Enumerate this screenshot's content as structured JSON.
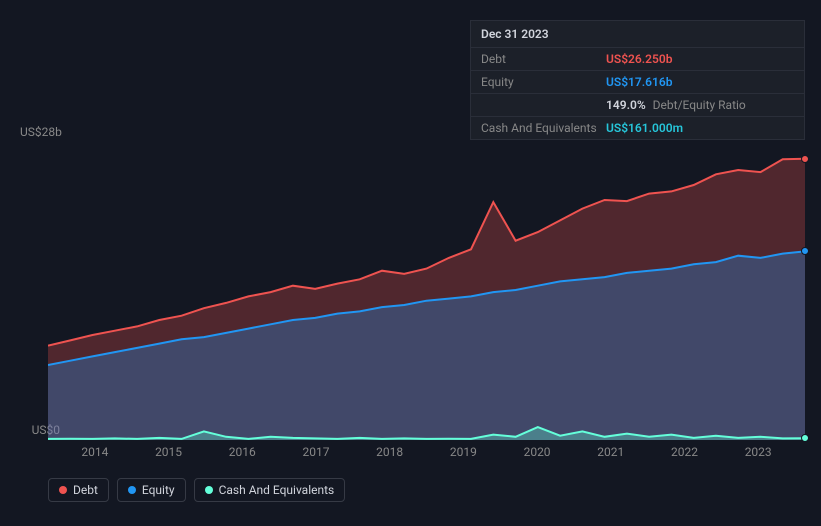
{
  "tooltip": {
    "date": "Dec 31 2023",
    "rows": [
      {
        "label": "Debt",
        "value": "US$26.250b",
        "cls": "val-debt"
      },
      {
        "label": "Equity",
        "value": "US$17.616b",
        "cls": "val-equity"
      },
      {
        "label": "",
        "ratio": "149.0%",
        "ratio_label": "Debt/Equity Ratio"
      },
      {
        "label": "Cash And Equivalents",
        "value": "US$161.000m",
        "cls": "val-cash"
      }
    ]
  },
  "chart": {
    "type": "area",
    "ymax": 28,
    "ymin": 0,
    "y_top_label": "US$28b",
    "y_bot_label": "US$0",
    "x_labels": [
      "2014",
      "2015",
      "2016",
      "2017",
      "2018",
      "2019",
      "2020",
      "2021",
      "2022",
      "2023"
    ],
    "background": "#131722",
    "grid_color": "#2a2e39",
    "series": {
      "debt": {
        "color": "#ef5350",
        "fill": "rgba(239,83,80,0.28)",
        "data": [
          8.8,
          9.3,
          9.8,
          10.2,
          10.6,
          11.2,
          11.6,
          12.3,
          12.8,
          13.4,
          13.8,
          14.4,
          14.1,
          14.6,
          15.0,
          15.8,
          15.5,
          16.0,
          17.0,
          17.8,
          22.2,
          18.6,
          19.4,
          20.5,
          21.6,
          22.4,
          22.3,
          23.0,
          23.2,
          23.8,
          24.8,
          25.2,
          25.0,
          26.2,
          26.25
        ]
      },
      "equity": {
        "color": "#2196f3",
        "fill": "rgba(33,150,243,0.30)",
        "data": [
          7.0,
          7.4,
          7.8,
          8.2,
          8.6,
          9.0,
          9.4,
          9.6,
          10.0,
          10.4,
          10.8,
          11.2,
          11.4,
          11.8,
          12.0,
          12.4,
          12.6,
          13.0,
          13.2,
          13.4,
          13.8,
          14.0,
          14.4,
          14.8,
          15.0,
          15.2,
          15.6,
          15.8,
          16.0,
          16.4,
          16.6,
          17.2,
          17.0,
          17.4,
          17.6
        ]
      },
      "cash": {
        "color": "#64ffda",
        "fill": "rgba(100,255,218,0.30)",
        "data": [
          0.1,
          0.12,
          0.1,
          0.15,
          0.1,
          0.2,
          0.1,
          0.8,
          0.3,
          0.1,
          0.3,
          0.2,
          0.15,
          0.1,
          0.2,
          0.1,
          0.15,
          0.1,
          0.12,
          0.1,
          0.5,
          0.3,
          1.2,
          0.4,
          0.8,
          0.3,
          0.6,
          0.3,
          0.5,
          0.2,
          0.4,
          0.2,
          0.3,
          0.15,
          0.16
        ]
      }
    }
  },
  "legend": [
    {
      "label": "Debt",
      "dot": "dot-debt"
    },
    {
      "label": "Equity",
      "dot": "dot-equity"
    },
    {
      "label": "Cash And Equivalents",
      "dot": "dot-cash"
    }
  ]
}
